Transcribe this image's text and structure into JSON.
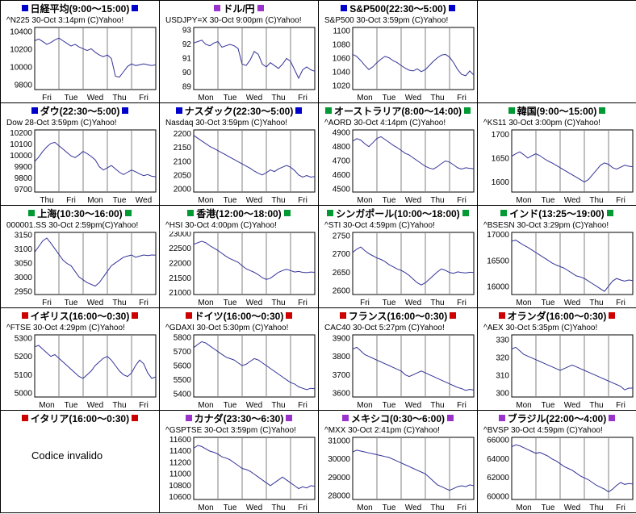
{
  "colors": {
    "line": "#333399",
    "grid": "#808080",
    "plot_border": "#000000",
    "region_blue": "#0000cc",
    "region_green": "#009933",
    "region_red": "#cc0000",
    "region_purple": "#9933cc"
  },
  "cells": [
    {
      "title": "日経平均(9:00〜15:00)",
      "square_color": "#0000cc",
      "caption": "^N225 30-Oct 3:14pm (C)Yahoo!",
      "chart_index": 0
    },
    {
      "title": "ドル/円",
      "square_color": "#9933cc",
      "caption": "USDJPY=X 30-Oct 9:00pm (C)Yahoo!",
      "chart_index": 1
    },
    {
      "title": "S&P500(22:30〜5:00)",
      "square_color": "#0000cc",
      "caption": "S&P500 30-Oct 3:59pm (C)Yahoo!",
      "chart_index": 2
    },
    {
      "empty": true
    },
    {
      "title": "ダウ(22:30〜5:00)",
      "square_color": "#0000cc",
      "caption": "Dow 28-Oct 3:59pm (C)Yahoo!",
      "chart_index": 3
    },
    {
      "title": "ナスダック(22:30〜5:00)",
      "square_color": "#0000cc",
      "caption": "Nasdaq 30-Oct 3:59pm (C)Yahoo!",
      "chart_index": 4
    },
    {
      "title": "オーストラリア(8:00〜14:00)",
      "square_color": "#009933",
      "caption": "^AORD 30-Oct 4:14pm (C)Yahoo!",
      "chart_index": 5
    },
    {
      "title": "韓国(9:00〜15:00)",
      "square_color": "#009933",
      "caption": "^KS11 30-Oct 3:00pm (C)Yahoo!",
      "chart_index": 6
    },
    {
      "title": "上海(10:30〜16:00)",
      "square_color": "#009933",
      "caption": "000001.SS 30-Oct 2:59pm(C)Yahoo!",
      "chart_index": 7
    },
    {
      "title": "香港(12:00〜18:00)",
      "square_color": "#009933",
      "caption": "^HSI 30-Oct 4:00pm (C)Yahoo!",
      "chart_index": 8
    },
    {
      "title": "シンガポール(10:00〜18:00)",
      "square_color": "#009933",
      "caption": "^STI 30-Oct 4:59pm (C)Yahoo!",
      "chart_index": 9
    },
    {
      "title": "インド(13:25〜19:00)",
      "square_color": "#009933",
      "caption": "^BSESN 30-Oct 3:29pm (C)Yahoo!",
      "chart_index": 10
    },
    {
      "title": "イギリス(16:00〜0:30)",
      "square_color": "#cc0000",
      "caption": "^FTSE 30-Oct 4:29pm (C)Yahoo!",
      "chart_index": 11
    },
    {
      "title": "ドイツ(16:00〜0:30)",
      "square_color": "#cc0000",
      "caption": "^GDAXI 30-Oct 5:30pm (C)Yahoo!",
      "chart_index": 12
    },
    {
      "title": "フランス(16:00〜0:30)",
      "square_color": "#cc0000",
      "caption": "CAC40 30-Oct 5:27pm (C)Yahoo!",
      "chart_index": 13
    },
    {
      "title": "オランダ(16:00〜0:30)",
      "square_color": "#cc0000",
      "caption": "^AEX 30-Oct 5:35pm (C)Yahoo!",
      "chart_index": 14
    },
    {
      "title": "イタリア(16:00〜0:30)",
      "square_color": "#cc0000",
      "message": "Codice invalido"
    },
    {
      "title": "カナダ(23:30〜6:30)",
      "square_color": "#9933cc",
      "caption": "^GSPTSE 30-Oct 3:59pm (C)Yahoo!",
      "chart_index": 15
    },
    {
      "title": "メキシコ(0:30〜6:00)",
      "square_color": "#9933cc",
      "caption": "^MXX 30-Oct 2:41pm (C)Yahoo!",
      "chart_index": 16
    },
    {
      "title": "ブラジル(22:00〜4:00)",
      "square_color": "#9933cc",
      "caption": "^BVSP 30-Oct 4:59pm (C)Yahoo!",
      "chart_index": 17
    }
  ],
  "chart_data": [
    {
      "type": "line",
      "symbol": "^N225",
      "market": "日経平均",
      "x_labels": [
        "Fri",
        "Tue",
        "Wed",
        "Thu",
        "Fri"
      ],
      "y_ticks": [
        10400,
        10200,
        10000,
        9800
      ],
      "y_min": 9750,
      "y_max": 10450,
      "values": [
        10300,
        10320,
        10290,
        10260,
        10280,
        10310,
        10330,
        10300,
        10270,
        10240,
        10260,
        10230,
        10210,
        10190,
        10210,
        10170,
        10140,
        10120,
        10140,
        10100,
        9900,
        9890,
        9950,
        10010,
        10040,
        10020,
        10030,
        10040,
        10030,
        10020,
        10030
      ]
    },
    {
      "type": "line",
      "symbol": "USDJPY=X",
      "market": "ドル/円",
      "x_labels": [
        "Mon",
        "Tue",
        "Wed",
        "Thu",
        "Fri"
      ],
      "y_ticks": [
        93,
        92,
        91,
        90,
        89
      ],
      "y_min": 88.8,
      "y_max": 93.2,
      "values": [
        92.1,
        92.2,
        92.3,
        92.0,
        91.9,
        92.1,
        92.2,
        91.8,
        91.9,
        92.0,
        91.9,
        91.7,
        90.6,
        90.5,
        90.9,
        91.5,
        91.3,
        90.6,
        90.4,
        90.7,
        90.5,
        90.3,
        90.6,
        91.0,
        90.8,
        90.2,
        89.6,
        90.2,
        90.4,
        90.2,
        90.1
      ]
    },
    {
      "type": "line",
      "symbol": "S&P500",
      "market": "S&P500",
      "x_labels": [
        "Mon",
        "Tue",
        "Wed",
        "Thu",
        "Fri"
      ],
      "y_ticks": [
        1100,
        1080,
        1060,
        1040,
        1020
      ],
      "y_min": 1015,
      "y_max": 1105,
      "values": [
        1066,
        1063,
        1057,
        1050,
        1044,
        1048,
        1054,
        1059,
        1063,
        1061,
        1057,
        1054,
        1050,
        1046,
        1043,
        1042,
        1045,
        1041,
        1044,
        1050,
        1056,
        1061,
        1065,
        1066,
        1062,
        1054,
        1044,
        1037,
        1035,
        1042,
        1036
      ]
    },
    {
      "type": "line",
      "symbol": "Dow",
      "market": "ダウ",
      "x_labels": [
        "Thu",
        "Fri",
        "Mon",
        "Tue",
        "Wed"
      ],
      "y_ticks": [
        10200,
        10100,
        10000,
        9900,
        9800,
        9700
      ],
      "y_min": 9680,
      "y_max": 10230,
      "values": [
        9950,
        9990,
        10040,
        10080,
        10110,
        10120,
        10090,
        10060,
        10030,
        10000,
        9985,
        10010,
        10040,
        10020,
        9995,
        9965,
        9905,
        9875,
        9895,
        9915,
        9885,
        9855,
        9835,
        9855,
        9875,
        9860,
        9840,
        9825,
        9835,
        9820,
        9815
      ]
    },
    {
      "type": "line",
      "symbol": "Nasdaq",
      "market": "ナスダック",
      "x_labels": [
        "Mon",
        "Tue",
        "Wed",
        "Thu",
        "Fri"
      ],
      "y_ticks": [
        2200,
        2150,
        2100,
        2050,
        2000
      ],
      "y_min": 1990,
      "y_max": 2215,
      "values": [
        2195,
        2185,
        2175,
        2165,
        2155,
        2148,
        2140,
        2132,
        2124,
        2116,
        2108,
        2100,
        2092,
        2084,
        2076,
        2066,
        2058,
        2052,
        2060,
        2070,
        2064,
        2074,
        2080,
        2086,
        2080,
        2068,
        2052,
        2044,
        2050,
        2044,
        2046
      ]
    },
    {
      "type": "line",
      "symbol": "^AORD",
      "market": "オーストラリア",
      "x_labels": [
        "Mon",
        "Tue",
        "Wed",
        "Thu",
        "Fri"
      ],
      "y_ticks": [
        4900,
        4800,
        4700,
        4600,
        4500
      ],
      "y_min": 4480,
      "y_max": 4920,
      "values": [
        4840,
        4858,
        4848,
        4822,
        4802,
        4830,
        4860,
        4872,
        4852,
        4832,
        4812,
        4795,
        4775,
        4755,
        4742,
        4722,
        4702,
        4682,
        4662,
        4650,
        4642,
        4660,
        4682,
        4700,
        4692,
        4672,
        4652,
        4642,
        4652,
        4648,
        4645
      ]
    },
    {
      "type": "line",
      "symbol": "^KS11",
      "market": "韓国",
      "x_labels": [
        "Mon",
        "Tue",
        "Wed",
        "Thu",
        "Fri"
      ],
      "y_ticks": [
        1700,
        1650,
        1600
      ],
      "y_min": 1580,
      "y_max": 1710,
      "values": [
        1655,
        1660,
        1664,
        1658,
        1651,
        1656,
        1660,
        1656,
        1650,
        1645,
        1641,
        1636,
        1631,
        1626,
        1621,
        1616,
        1611,
        1606,
        1601,
        1606,
        1616,
        1626,
        1636,
        1641,
        1638,
        1631,
        1628,
        1632,
        1636,
        1634,
        1633
      ]
    },
    {
      "type": "line",
      "symbol": "000001.SS",
      "market": "上海",
      "x_labels": [
        "Fri",
        "Tue",
        "Wed",
        "Thu",
        "Fri"
      ],
      "y_ticks": [
        3150,
        3100,
        3050,
        3000,
        2950
      ],
      "y_min": 2940,
      "y_max": 3160,
      "values": [
        3090,
        3110,
        3130,
        3140,
        3122,
        3102,
        3082,
        3062,
        3050,
        3042,
        3022,
        3002,
        2992,
        2982,
        2976,
        2970,
        2982,
        3002,
        3022,
        3042,
        3052,
        3062,
        3072,
        3076,
        3080,
        3072,
        3076,
        3080,
        3078,
        3080,
        3079
      ]
    },
    {
      "type": "line",
      "symbol": "^HSI",
      "market": "香港",
      "x_labels": [
        "Mon",
        "Tue",
        "Wed",
        "Thu",
        "Fri"
      ],
      "y_ticks": [
        23000,
        22500,
        22000,
        21500,
        21000
      ],
      "y_min": 20950,
      "y_max": 23050,
      "values": [
        22650,
        22700,
        22750,
        22700,
        22600,
        22520,
        22440,
        22340,
        22240,
        22160,
        22100,
        22040,
        21920,
        21820,
        21760,
        21700,
        21620,
        21520,
        21460,
        21500,
        21600,
        21700,
        21760,
        21800,
        21760,
        21710,
        21730,
        21700,
        21690,
        21710,
        21700
      ]
    },
    {
      "type": "line",
      "symbol": "^STI",
      "market": "シンガポール",
      "x_labels": [
        "Fri",
        "Tue",
        "Wed",
        "Thu",
        "Fri"
      ],
      "y_ticks": [
        2750,
        2700,
        2650,
        2600
      ],
      "y_min": 2590,
      "y_max": 2760,
      "values": [
        2705,
        2714,
        2720,
        2710,
        2702,
        2696,
        2690,
        2686,
        2680,
        2672,
        2666,
        2660,
        2656,
        2650,
        2642,
        2632,
        2622,
        2616,
        2622,
        2632,
        2642,
        2652,
        2660,
        2656,
        2650,
        2648,
        2652,
        2650,
        2649,
        2651,
        2650
      ]
    },
    {
      "type": "line",
      "symbol": "^BSESN",
      "market": "インド",
      "x_labels": [
        "Mon",
        "Tue",
        "Wed",
        "Thu",
        "Fri"
      ],
      "y_ticks": [
        17000,
        16500,
        16000
      ],
      "y_min": 15850,
      "y_max": 17050,
      "values": [
        16880,
        16900,
        16850,
        16800,
        16760,
        16710,
        16660,
        16610,
        16560,
        16510,
        16460,
        16420,
        16390,
        16360,
        16310,
        16260,
        16210,
        16190,
        16160,
        16110,
        16060,
        16010,
        15960,
        15910,
        16010,
        16110,
        16160,
        16130,
        16110,
        16130,
        16120
      ]
    },
    {
      "type": "line",
      "symbol": "^FTSE",
      "market": "イギリス",
      "x_labels": [
        "Mon",
        "Tue",
        "Wed",
        "Thu",
        "Fri"
      ],
      "y_ticks": [
        5300,
        5200,
        5100,
        5000
      ],
      "y_min": 4980,
      "y_max": 5320,
      "values": [
        5255,
        5262,
        5242,
        5222,
        5202,
        5212,
        5192,
        5172,
        5152,
        5132,
        5112,
        5092,
        5082,
        5102,
        5122,
        5152,
        5172,
        5192,
        5202,
        5182,
        5152,
        5122,
        5102,
        5092,
        5112,
        5152,
        5182,
        5162,
        5112,
        5082,
        5090
      ]
    },
    {
      "type": "line",
      "symbol": "^GDAXI",
      "market": "ドイツ",
      "x_labels": [
        "Mon",
        "Tue",
        "Wed",
        "Thu",
        "Fri"
      ],
      "y_ticks": [
        5800,
        5700,
        5600,
        5500,
        5400
      ],
      "y_min": 5380,
      "y_max": 5820,
      "values": [
        5730,
        5752,
        5772,
        5762,
        5742,
        5722,
        5702,
        5682,
        5662,
        5652,
        5642,
        5622,
        5602,
        5612,
        5632,
        5652,
        5642,
        5622,
        5602,
        5582,
        5562,
        5542,
        5522,
        5502,
        5482,
        5472,
        5452,
        5442,
        5432,
        5442,
        5438
      ]
    },
    {
      "type": "line",
      "symbol": "CAC40",
      "market": "フランス",
      "x_labels": [
        "Mon",
        "Tue",
        "Wed",
        "Thu",
        "Fri"
      ],
      "y_ticks": [
        3900,
        3800,
        3700,
        3600
      ],
      "y_min": 3580,
      "y_max": 3920,
      "values": [
        3842,
        3852,
        3832,
        3812,
        3802,
        3792,
        3782,
        3772,
        3762,
        3752,
        3742,
        3732,
        3722,
        3702,
        3692,
        3702,
        3712,
        3722,
        3712,
        3702,
        3692,
        3682,
        3672,
        3662,
        3652,
        3642,
        3632,
        3626,
        3616,
        3622,
        3618
      ]
    },
    {
      "type": "line",
      "symbol": "^AEX",
      "market": "オランダ",
      "x_labels": [
        "Mon",
        "Tue",
        "Wed",
        "Thu",
        "Fri"
      ],
      "y_ticks": [
        330,
        320,
        310,
        300
      ],
      "y_min": 298,
      "y_max": 333,
      "values": [
        325,
        326,
        324,
        322,
        321,
        320,
        319,
        318,
        317,
        316,
        315,
        314,
        313,
        314,
        315,
        316,
        315,
        314,
        313,
        312,
        311,
        310,
        309,
        308,
        307,
        306,
        305,
        304,
        302,
        303,
        303
      ]
    },
    {
      "type": "line",
      "symbol": "^GSPTSE",
      "market": "カナダ",
      "x_labels": [
        "Mon",
        "Tue",
        "Wed",
        "Thu",
        "Fri"
      ],
      "y_ticks": [
        11600,
        11400,
        11200,
        11000,
        10800,
        10600
      ],
      "y_min": 10560,
      "y_max": 11640,
      "values": [
        11450,
        11500,
        11480,
        11440,
        11400,
        11380,
        11350,
        11300,
        11280,
        11250,
        11200,
        11150,
        11100,
        11080,
        11050,
        11000,
        10950,
        10900,
        10850,
        10800,
        10850,
        10900,
        10950,
        10900,
        10850,
        10800,
        10750,
        10780,
        10760,
        10800,
        10790
      ]
    },
    {
      "type": "line",
      "symbol": "^MXX",
      "market": "メキシコ",
      "x_labels": [
        "Mon",
        "Tue",
        "Wed",
        "Thu",
        "Fri"
      ],
      "y_ticks": [
        31000,
        30000,
        29000,
        28000
      ],
      "y_min": 27800,
      "y_max": 31200,
      "values": [
        30400,
        30500,
        30450,
        30400,
        30350,
        30300,
        30250,
        30200,
        30150,
        30100,
        30000,
        29900,
        29800,
        29700,
        29600,
        29500,
        29400,
        29300,
        29200,
        29000,
        28800,
        28600,
        28500,
        28400,
        28300,
        28400,
        28500,
        28550,
        28500,
        28600,
        28550
      ]
    },
    {
      "type": "line",
      "symbol": "^BVSP",
      "market": "ブラジル",
      "x_labels": [
        "Mon",
        "Tue",
        "Wed",
        "Thu",
        "Fri"
      ],
      "y_ticks": [
        66000,
        64000,
        62000,
        60000
      ],
      "y_min": 59700,
      "y_max": 66300,
      "values": [
        65300,
        65500,
        65400,
        65200,
        65000,
        64800,
        64600,
        64700,
        64500,
        64300,
        64000,
        63800,
        63500,
        63200,
        63000,
        62800,
        62500,
        62200,
        62000,
        61800,
        61500,
        61200,
        61000,
        60800,
        60500,
        60800,
        61200,
        61500,
        61300,
        61400,
        61350
      ]
    }
  ]
}
